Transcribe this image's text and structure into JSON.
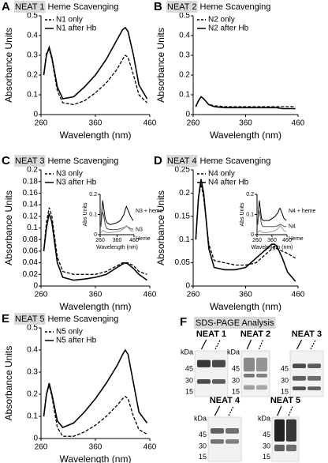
{
  "chart_data": [
    {
      "type": "line",
      "label": "A",
      "title_highlight": "NEAT 1",
      "title": "Heme Scavenging",
      "xlabel": "Wavelength (nm)",
      "ylabel": "Absorbance Units",
      "x": [
        265,
        270,
        275,
        280,
        290,
        300,
        320,
        340,
        360,
        380,
        400,
        410,
        415,
        420,
        430,
        440,
        455
      ],
      "xlim": [
        260,
        460
      ],
      "xticks": [
        260,
        360,
        460
      ],
      "ylim": [
        0,
        0.5
      ],
      "yticks": [
        0,
        0.1,
        0.2,
        0.3,
        0.4,
        0.5
      ],
      "legend": "top-left",
      "series": [
        {
          "name": "N1 only",
          "color": "#000000",
          "dashed": true,
          "values": [
            0.2,
            0.31,
            0.33,
            0.28,
            0.12,
            0.06,
            0.05,
            0.07,
            0.11,
            0.16,
            0.23,
            0.28,
            0.3,
            0.29,
            0.2,
            0.1,
            0.06
          ]
        },
        {
          "name": "N1 after Hb",
          "color": "#000000",
          "dashed": false,
          "values": [
            0.2,
            0.3,
            0.34,
            0.29,
            0.14,
            0.08,
            0.09,
            0.14,
            0.2,
            0.28,
            0.38,
            0.43,
            0.44,
            0.42,
            0.3,
            0.15,
            0.08
          ]
        }
      ]
    },
    {
      "type": "line",
      "label": "B",
      "title_highlight": "NEAT 2",
      "title": "Heme Scavenging",
      "xlabel": "Wavelength (nm)",
      "ylabel": "Absorbance Units",
      "x": [
        265,
        270,
        275,
        280,
        290,
        300,
        320,
        340,
        360,
        380,
        400,
        410,
        415,
        420,
        430,
        440,
        455
      ],
      "xlim": [
        260,
        460
      ],
      "xticks": [
        260,
        360,
        460
      ],
      "ylim": [
        0,
        0.5
      ],
      "yticks": [
        0,
        0.1,
        0.2,
        0.3,
        0.4,
        0.5
      ],
      "legend": "top-left",
      "series": [
        {
          "name": "N2 only",
          "color": "#000000",
          "dashed": true,
          "values": [
            0.04,
            0.07,
            0.09,
            0.08,
            0.05,
            0.045,
            0.04,
            0.04,
            0.04,
            0.04,
            0.04,
            0.04,
            0.04,
            0.04,
            0.04,
            0.04,
            0.04
          ]
        },
        {
          "name": "N2 after Hb",
          "color": "#000000",
          "dashed": false,
          "values": [
            0.04,
            0.07,
            0.09,
            0.08,
            0.05,
            0.04,
            0.035,
            0.035,
            0.035,
            0.035,
            0.035,
            0.035,
            0.035,
            0.035,
            0.03,
            0.03,
            0.03
          ]
        }
      ]
    },
    {
      "type": "line",
      "label": "C",
      "title_highlight": "NEAT 3",
      "title": "Heme Scavenging",
      "xlabel": "Wavelength (nm)",
      "ylabel": "Absorbance Units",
      "x": [
        265,
        270,
        275,
        280,
        290,
        300,
        320,
        340,
        360,
        380,
        400,
        410,
        415,
        420,
        430,
        440,
        455
      ],
      "xlim": [
        260,
        460
      ],
      "xticks": [
        260,
        360,
        460
      ],
      "ylim": [
        0,
        0.2
      ],
      "yticks": [
        0,
        0.02,
        0.04,
        0.06,
        0.08,
        0.1,
        0.12,
        0.14,
        0.16,
        0.18,
        0.2
      ],
      "legend": "top-left",
      "series": [
        {
          "name": "N3 only",
          "color": "#000000",
          "dashed": true,
          "values": [
            0.06,
            0.11,
            0.135,
            0.12,
            0.05,
            0.025,
            0.02,
            0.02,
            0.02,
            0.025,
            0.035,
            0.04,
            0.04,
            0.04,
            0.035,
            0.025,
            0.02
          ]
        },
        {
          "name": "N3 after Hb",
          "color": "#000000",
          "dashed": false,
          "values": [
            0.06,
            0.1,
            0.125,
            0.11,
            0.04,
            0.015,
            0.01,
            0.012,
            0.015,
            0.02,
            0.032,
            0.038,
            0.04,
            0.038,
            0.03,
            0.02,
            0.01
          ]
        }
      ],
      "inset": {
        "type": "line",
        "xlabel": "Wavelength (nm)",
        "ylabel": "Abs Units",
        "x": [
          265,
          270,
          275,
          280,
          290,
          300,
          320,
          340,
          360,
          380,
          400,
          410,
          415,
          420,
          430,
          440,
          455
        ],
        "xlim": [
          260,
          460
        ],
        "xticks": [
          260,
          360,
          460
        ],
        "ylim": [
          0,
          0.2
        ],
        "yticks": [
          0,
          0.1,
          0.2
        ],
        "legend": "inline",
        "series": [
          {
            "name": "N3 + heme",
            "color": "#000000",
            "dashed": false,
            "values": [
              0.05,
              0.12,
              0.17,
              0.14,
              0.08,
              0.06,
              0.05,
              0.055,
              0.06,
              0.07,
              0.1,
              0.13,
              0.14,
              0.13,
              0.11,
              0.09,
              0.07
            ]
          },
          {
            "name": "N3",
            "color": "#555555",
            "dashed": false,
            "values": [
              0.04,
              0.09,
              0.11,
              0.1,
              0.05,
              0.03,
              0.025,
              0.025,
              0.025,
              0.03,
              0.035,
              0.04,
              0.04,
              0.04,
              0.035,
              0.03,
              0.025
            ]
          },
          {
            "name": "Heme",
            "color": "#999999",
            "dashed": false,
            "values": [
              0.01,
              0.015,
              0.02,
              0.02,
              0.015,
              0.01,
              0.01,
              0.012,
              0.015,
              0.02,
              0.03,
              0.04,
              0.045,
              0.04,
              0.03,
              0.02,
              0.015
            ]
          }
        ]
      }
    },
    {
      "type": "line",
      "label": "D",
      "title_highlight": "NEAT 4",
      "title": "Heme Scavenging",
      "xlabel": "Wavelength (nm)",
      "ylabel": "Absorbance Units",
      "x": [
        265,
        270,
        275,
        280,
        290,
        300,
        320,
        340,
        360,
        380,
        400,
        410,
        415,
        420,
        430,
        440,
        455
      ],
      "xlim": [
        260,
        460
      ],
      "xticks": [
        260,
        360,
        460
      ],
      "ylim": [
        0,
        0.25
      ],
      "yticks": [
        0,
        0.05,
        0.1,
        0.15,
        0.2,
        0.25
      ],
      "legend": "top-left",
      "series": [
        {
          "name": "N4 only",
          "color": "#000000",
          "dashed": true,
          "values": [
            0.1,
            0.19,
            0.22,
            0.19,
            0.09,
            0.055,
            0.05,
            0.045,
            0.045,
            0.05,
            0.07,
            0.08,
            0.085,
            0.08,
            0.075,
            0.07,
            0.06
          ]
        },
        {
          "name": "N4 after Hb",
          "color": "#000000",
          "dashed": false,
          "values": [
            0.1,
            0.19,
            0.23,
            0.2,
            0.08,
            0.04,
            0.035,
            0.035,
            0.04,
            0.06,
            0.08,
            0.09,
            0.09,
            0.085,
            0.06,
            0.03,
            0.01
          ]
        }
      ],
      "inset": {
        "type": "line",
        "xlabel": "Wavelength (nm)",
        "ylabel": "Abs Units",
        "x": [
          265,
          270,
          275,
          280,
          290,
          300,
          320,
          340,
          360,
          380,
          400,
          410,
          415,
          420,
          430,
          440,
          455
        ],
        "xlim": [
          260,
          460
        ],
        "xticks": [
          260,
          360,
          460
        ],
        "ylim": [
          0,
          0.2
        ],
        "yticks": [
          0,
          0.1,
          0.2
        ],
        "legend": "inline",
        "series": [
          {
            "name": "N4 + heme",
            "color": "#000000",
            "dashed": false,
            "values": [
              0.05,
              0.12,
              0.17,
              0.14,
              0.08,
              0.07,
              0.07,
              0.07,
              0.08,
              0.09,
              0.11,
              0.13,
              0.13,
              0.12,
              0.1,
              0.08,
              0.07
            ]
          },
          {
            "name": "N4",
            "color": "#555555",
            "dashed": false,
            "values": [
              0.05,
              0.1,
              0.12,
              0.1,
              0.05,
              0.04,
              0.04,
              0.04,
              0.04,
              0.04,
              0.045,
              0.05,
              0.05,
              0.05,
              0.045,
              0.04,
              0.04
            ]
          },
          {
            "name": "Heme",
            "color": "#999999",
            "dashed": false,
            "values": [
              0.01,
              0.015,
              0.02,
              0.02,
              0.015,
              0.01,
              0.01,
              0.012,
              0.015,
              0.02,
              0.03,
              0.04,
              0.045,
              0.04,
              0.03,
              0.02,
              0.015
            ]
          }
        ]
      }
    },
    {
      "type": "line",
      "label": "E",
      "title_highlight": "NEAT 5",
      "title": "Heme Scavenging",
      "xlabel": "Wavelength (nm)",
      "ylabel": "Absorbance Units",
      "x": [
        265,
        270,
        275,
        280,
        290,
        300,
        320,
        340,
        360,
        380,
        400,
        410,
        415,
        420,
        430,
        440,
        455
      ],
      "xlim": [
        260,
        460
      ],
      "xticks": [
        260,
        360,
        460
      ],
      "ylim": [
        0,
        0.5
      ],
      "yticks": [
        0,
        0.1,
        0.2,
        0.3,
        0.4,
        0.5
      ],
      "legend": "top-left",
      "series": [
        {
          "name": "N5 only",
          "color": "#000000",
          "dashed": true,
          "values": [
            0.1,
            0.2,
            0.24,
            0.19,
            0.05,
            0.01,
            0.01,
            0.03,
            0.06,
            0.1,
            0.15,
            0.18,
            0.19,
            0.18,
            0.1,
            0.04,
            0.02
          ]
        },
        {
          "name": "N5 after Hb",
          "color": "#000000",
          "dashed": false,
          "values": [
            0.1,
            0.2,
            0.25,
            0.2,
            0.08,
            0.05,
            0.07,
            0.12,
            0.18,
            0.25,
            0.33,
            0.38,
            0.4,
            0.38,
            0.25,
            0.12,
            0.07
          ]
        }
      ]
    }
  ],
  "gel_panel": {
    "label": "F",
    "title": "SDS-PAGE Analysis",
    "gels": [
      {
        "name": "NEAT 1",
        "unit": "kDa",
        "markers": [
          "45",
          "30",
          "15"
        ]
      },
      {
        "name": "NEAT 2",
        "unit": "kDa",
        "markers": [
          "45",
          "30",
          "15"
        ]
      },
      {
        "name": "NEAT 3",
        "markers": [
          "45",
          "30",
          "15"
        ]
      },
      {
        "name": "NEAT 4",
        "unit": "kDa",
        "markers": [
          "45",
          "30",
          "15"
        ]
      },
      {
        "name": "NEAT 5",
        "unit": "kDa",
        "markers": [
          "45",
          "30",
          "15"
        ]
      }
    ]
  }
}
